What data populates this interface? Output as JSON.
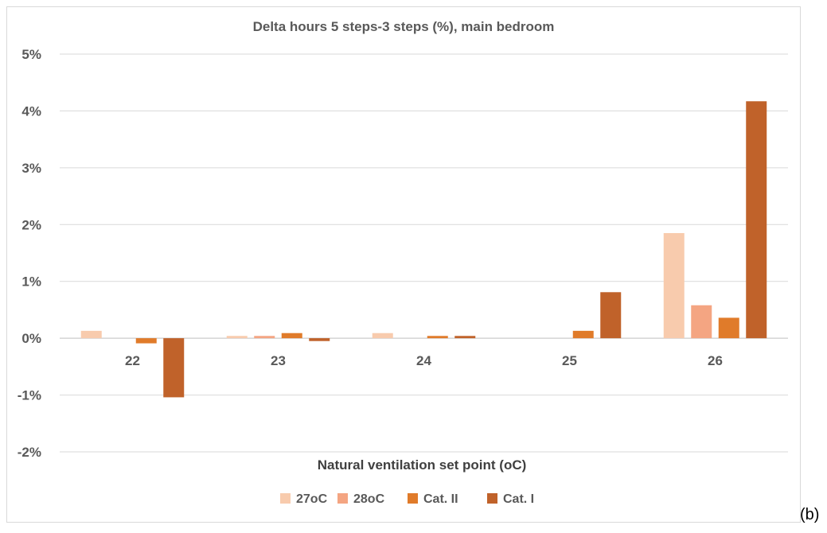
{
  "chart_data": {
    "type": "bar",
    "title": "Delta hours 5 steps-3 steps (%), main bedroom",
    "xlabel": "Natural ventilation set point (oC)",
    "ylabel": "",
    "categories": [
      "22",
      "23",
      "24",
      "25",
      "26"
    ],
    "ylim": [
      -2,
      5
    ],
    "yticks": [
      -2,
      -1,
      0,
      1,
      2,
      3,
      4,
      5
    ],
    "ytick_labels": [
      "-2%",
      "-1%",
      "0%",
      "1%",
      "2%",
      "3%",
      "4%",
      "5%"
    ],
    "grid": true,
    "legend_position": "bottom",
    "series": [
      {
        "name": "27oC",
        "color": "#f8cbad",
        "values": [
          0.13,
          0.04,
          0.09,
          0.0,
          1.85
        ]
      },
      {
        "name": "28oC",
        "color": "#f4a582",
        "values": [
          0.0,
          0.04,
          0.0,
          0.0,
          0.58
        ]
      },
      {
        "name": "Cat. II",
        "color": "#e07b2a",
        "values": [
          -0.09,
          0.09,
          0.04,
          0.13,
          0.36
        ]
      },
      {
        "name": "Cat. I",
        "color": "#c0622a",
        "values": [
          -1.04,
          -0.05,
          0.04,
          0.81,
          4.17
        ]
      }
    ]
  },
  "panel_label": "(b)"
}
